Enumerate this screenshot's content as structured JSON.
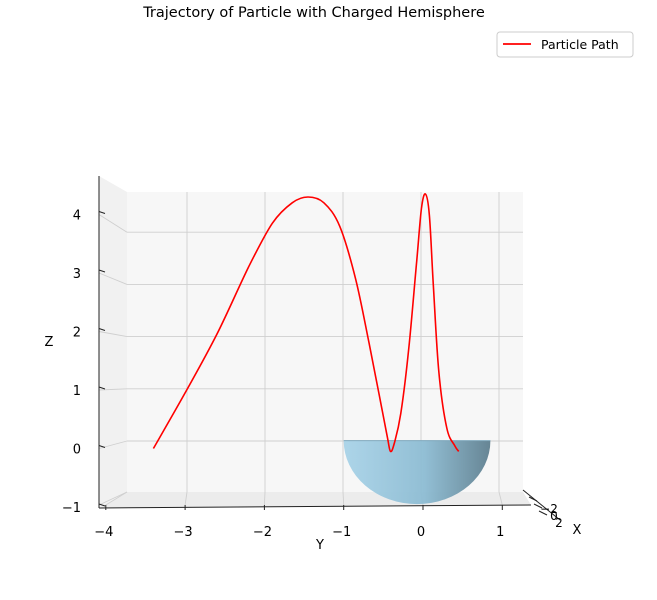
{
  "chart_data": {
    "type": "line",
    "projection": "3d",
    "title": "Trajectory of Particle with Charged Hemisphere",
    "xlabel": "X",
    "ylabel": "Y",
    "zlabel": "Z",
    "ylim": [
      -4.1,
      1.3
    ],
    "zlim": [
      -1,
      4.3
    ],
    "y_ticks": [
      "−4",
      "−3",
      "−2",
      "−1",
      "0",
      "1"
    ],
    "z_ticks": [
      "−1",
      "0",
      "1",
      "2",
      "3",
      "4"
    ],
    "x_ticks": [
      "−2",
      "0",
      "2"
    ],
    "grid": true,
    "legend": {
      "position": "top-right",
      "entries": [
        "Particle Path"
      ]
    },
    "series": [
      {
        "name": "Particle Path",
        "color": "#ff0000",
        "y": [
          -3.4,
          -3.0,
          -2.6,
          -2.2,
          -1.9,
          -1.65,
          -1.45,
          -1.25,
          -1.05,
          -0.85,
          -0.68,
          -0.55,
          -0.45,
          -0.41,
          -0.36,
          -0.28,
          -0.18,
          -0.08,
          -0.02,
          0.03,
          0.08,
          0.13,
          0.2,
          0.3,
          0.4,
          0.45
        ],
        "z": [
          0.0,
          0.95,
          1.95,
          3.1,
          3.85,
          4.2,
          4.3,
          4.2,
          3.8,
          2.9,
          1.8,
          0.9,
          0.2,
          -0.05,
          0.1,
          0.6,
          1.7,
          3.2,
          4.1,
          4.35,
          4.0,
          2.8,
          1.3,
          0.35,
          0.05,
          -0.05
        ]
      }
    ],
    "surface": {
      "kind": "hemisphere",
      "color": "#8fbed6",
      "y_range": [
        -1.0,
        0.85
      ],
      "z_range": [
        -0.95,
        0.1
      ]
    }
  }
}
